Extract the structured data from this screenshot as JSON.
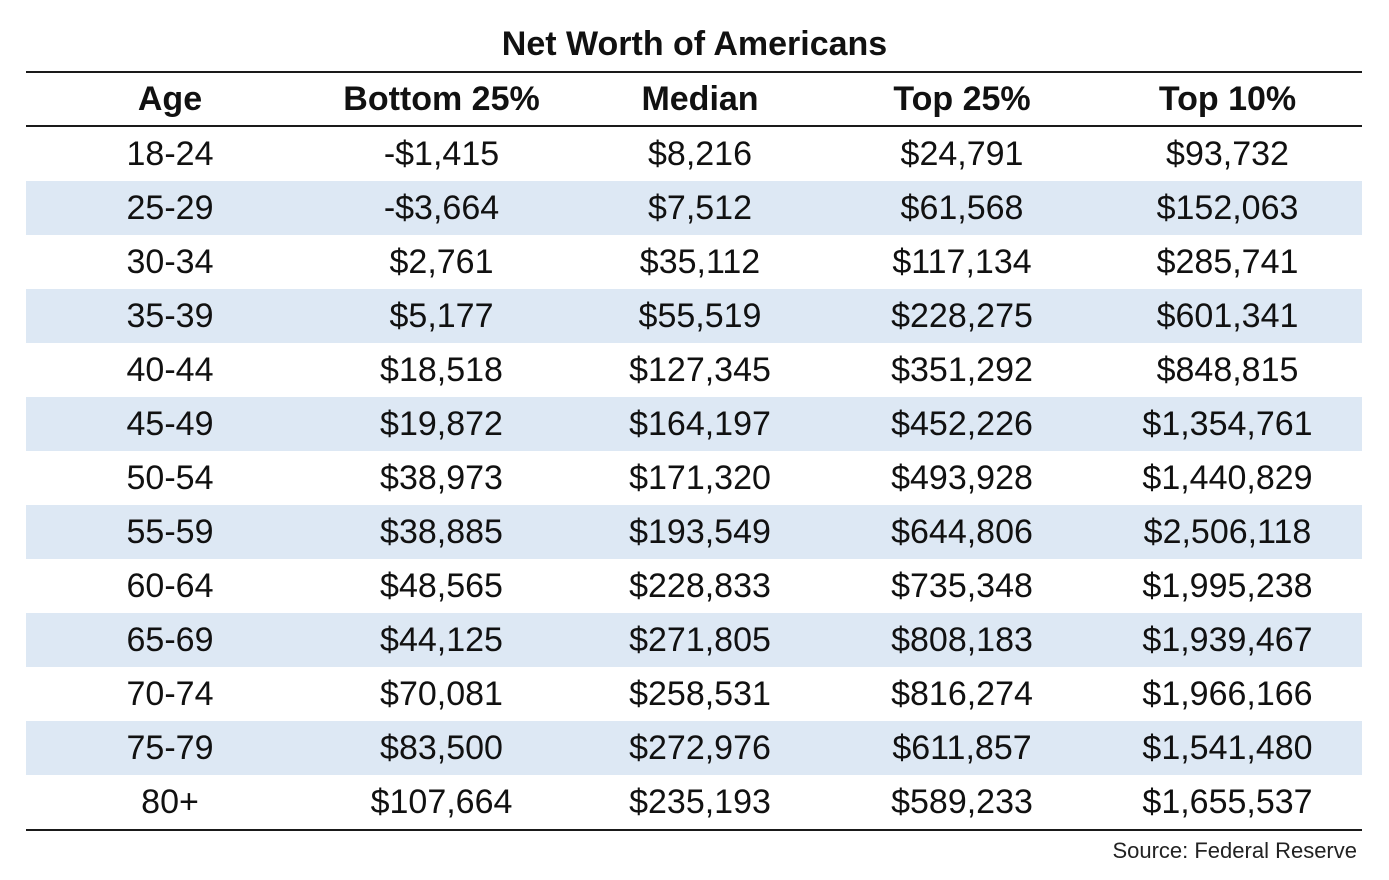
{
  "chart_data": {
    "type": "table",
    "title": "Net Worth of Americans",
    "columns": [
      "Age",
      "Bottom 25%",
      "Median",
      "Top 25%",
      "Top 10%"
    ],
    "rows": [
      [
        "18-24",
        "-$1,415",
        "$8,216",
        "$24,791",
        "$93,732"
      ],
      [
        "25-29",
        "-$3,664",
        "$7,512",
        "$61,568",
        "$152,063"
      ],
      [
        "30-34",
        "$2,761",
        "$35,112",
        "$117,134",
        "$285,741"
      ],
      [
        "35-39",
        "$5,177",
        "$55,519",
        "$228,275",
        "$601,341"
      ],
      [
        "40-44",
        "$18,518",
        "$127,345",
        "$351,292",
        "$848,815"
      ],
      [
        "45-49",
        "$19,872",
        "$164,197",
        "$452,226",
        "$1,354,761"
      ],
      [
        "50-54",
        "$38,973",
        "$171,320",
        "$493,928",
        "$1,440,829"
      ],
      [
        "55-59",
        "$38,885",
        "$193,549",
        "$644,806",
        "$2,506,118"
      ],
      [
        "60-64",
        "$48,565",
        "$228,833",
        "$735,348",
        "$1,995,238"
      ],
      [
        "65-69",
        "$44,125",
        "$271,805",
        "$808,183",
        "$1,939,467"
      ],
      [
        "70-74",
        "$70,081",
        "$258,531",
        "$816,274",
        "$1,966,166"
      ],
      [
        "75-79",
        "$83,500",
        "$272,976",
        "$611,857",
        "$1,541,480"
      ],
      [
        "80+",
        "$107,664",
        "$235,193",
        "$589,233",
        "$1,655,537"
      ]
    ],
    "source": "Source: Federal Reserve",
    "stripe_color": "#dde8f4",
    "rule_color": "#1a1a1a"
  }
}
